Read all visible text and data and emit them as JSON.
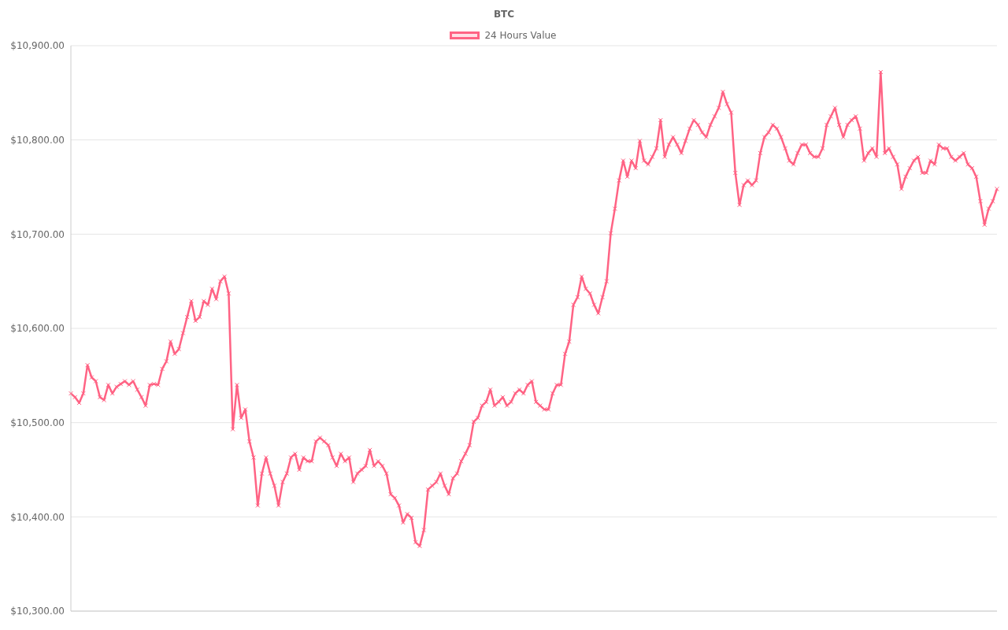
{
  "chart_data": {
    "type": "line",
    "title": "BTC",
    "legend": "top",
    "grid": "y",
    "marker": "cross",
    "line_style": "solid",
    "ylim": [
      10300,
      10900
    ],
    "yticks": [
      {
        "value": 10300,
        "label": "$10,300.00"
      },
      {
        "value": 10400,
        "label": "$10,400.00"
      },
      {
        "value": 10500,
        "label": "$10,500.00"
      },
      {
        "value": 10600,
        "label": "$10,600.00"
      },
      {
        "value": 10700,
        "label": "$10,700.00"
      },
      {
        "value": 10800,
        "label": "$10,800.00"
      },
      {
        "value": 10900,
        "label": "$10,900.00"
      }
    ],
    "categories": [
      null,
      null,
      null,
      null,
      null,
      null,
      null,
      null,
      null,
      null,
      null,
      null,
      null,
      null,
      null,
      null,
      null,
      null,
      null,
      null,
      null,
      null,
      null,
      null,
      null,
      null,
      null,
      null,
      null,
      null,
      null,
      null,
      null,
      null,
      null,
      null,
      null,
      null,
      null,
      null,
      null,
      null,
      null,
      null,
      null,
      null,
      null,
      null,
      null,
      null,
      null,
      null,
      null,
      null,
      null,
      null,
      null,
      null,
      null,
      null,
      null,
      null,
      null,
      null,
      null,
      null,
      null,
      null,
      null,
      null,
      null,
      null,
      null,
      null,
      null,
      null,
      null,
      null,
      null,
      null,
      null,
      null,
      null,
      null,
      null,
      null,
      null,
      null,
      null,
      null,
      null,
      null,
      null,
      null,
      null,
      null,
      null,
      null,
      null,
      null,
      null,
      null,
      null,
      null,
      null,
      null,
      null,
      null,
      null,
      null,
      null,
      null,
      null,
      null,
      null,
      null,
      null,
      null,
      null,
      null,
      null,
      null,
      null,
      null,
      null,
      null,
      null,
      null,
      null,
      null,
      null,
      null,
      null,
      null,
      null,
      null,
      null,
      null,
      null,
      null,
      null,
      null,
      null,
      null,
      null,
      null,
      null,
      null,
      null,
      null,
      null,
      null,
      null,
      null,
      null,
      null,
      null,
      null,
      null,
      null,
      null,
      null,
      null,
      null,
      null,
      null,
      null,
      null,
      null,
      null,
      null,
      null,
      null,
      null,
      null,
      null,
      null,
      null,
      null,
      null,
      null,
      null,
      null,
      null,
      null,
      null,
      null,
      null,
      null,
      null,
      null,
      null,
      null,
      null,
      null,
      null,
      null,
      null,
      null,
      null,
      null,
      null,
      null,
      null,
      null,
      null,
      null,
      null,
      null,
      null,
      null,
      null,
      null,
      null,
      null,
      null,
      null,
      null,
      null,
      null,
      null,
      null,
      null,
      null
    ],
    "series": [
      {
        "name": "24 Hours Value",
        "color": "#ff6384",
        "values": [
          10531,
          10527,
          10521,
          10531,
          10561,
          10548,
          10544,
          10527,
          10524,
          10540,
          10531,
          10538,
          10541,
          10544,
          10540,
          10544,
          10535,
          10527,
          10518,
          10540,
          10541,
          10540,
          10557,
          10565,
          10586,
          10573,
          10578,
          10595,
          10612,
          10629,
          10608,
          10612,
          10629,
          10625,
          10642,
          10631,
          10650,
          10655,
          10637,
          10493,
          10540,
          10505,
          10514,
          10480,
          10463,
          10412,
          10446,
          10463,
          10446,
          10433,
          10412,
          10437,
          10446,
          10463,
          10467,
          10450,
          10463,
          10459,
          10459,
          10480,
          10484,
          10480,
          10476,
          10463,
          10454,
          10467,
          10459,
          10463,
          10437,
          10446,
          10450,
          10454,
          10471,
          10454,
          10459,
          10454,
          10446,
          10424,
          10420,
          10412,
          10394,
          10403,
          10399,
          10373,
          10369,
          10386,
          10429,
          10433,
          10437,
          10446,
          10433,
          10424,
          10441,
          10446,
          10459,
          10467,
          10476,
          10501,
          10505,
          10518,
          10522,
          10535,
          10518,
          10522,
          10527,
          10518,
          10522,
          10531,
          10535,
          10531,
          10540,
          10544,
          10522,
          10518,
          10514,
          10514,
          10531,
          10540,
          10540,
          10573,
          10586,
          10625,
          10633,
          10655,
          10642,
          10637,
          10625,
          10616,
          10633,
          10650,
          10701,
          10727,
          10757,
          10778,
          10761,
          10778,
          10770,
          10799,
          10778,
          10774,
          10782,
          10791,
          10821,
          10782,
          10795,
          10803,
          10795,
          10786,
          10799,
          10812,
          10821,
          10816,
          10808,
          10803,
          10816,
          10825,
          10834,
          10851,
          10838,
          10829,
          10765,
          10731,
          10752,
          10757,
          10752,
          10757,
          10786,
          10803,
          10808,
          10816,
          10812,
          10803,
          10791,
          10778,
          10774,
          10786,
          10795,
          10795,
          10786,
          10782,
          10782,
          10791,
          10816,
          10825,
          10834,
          10816,
          10803,
          10816,
          10821,
          10825,
          10812,
          10778,
          10786,
          10791,
          10782,
          10872,
          10786,
          10791,
          10782,
          10774,
          10748,
          10761,
          10770,
          10778,
          10782,
          10765,
          10765,
          10778,
          10774,
          10795,
          10791,
          10791,
          10782,
          10778,
          10782,
          10786,
          10774,
          10770,
          10761,
          10735,
          10710,
          10727,
          10735,
          10748
        ]
      }
    ]
  }
}
